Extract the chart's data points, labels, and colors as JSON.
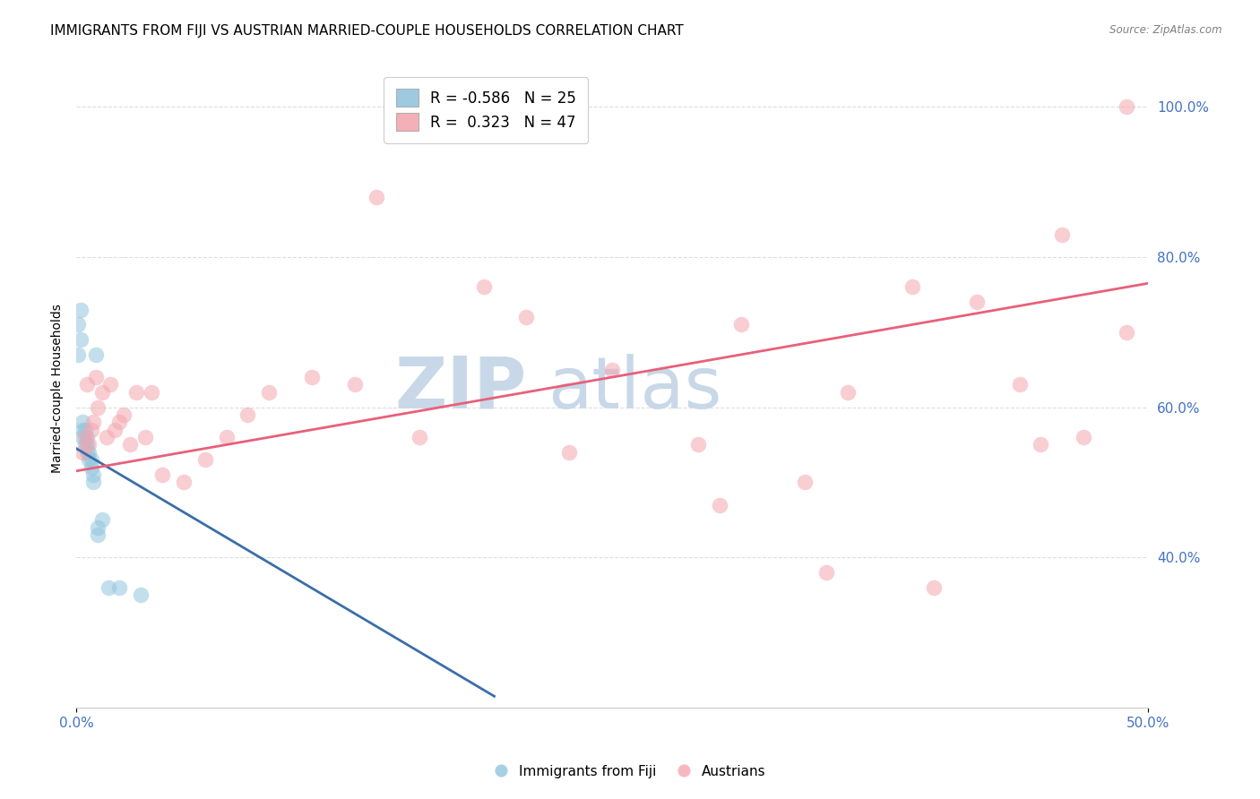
{
  "title": "IMMIGRANTS FROM FIJI VS AUSTRIAN MARRIED-COUPLE HOUSEHOLDS CORRELATION CHART",
  "source": "Source: ZipAtlas.com",
  "ylabel": "Married-couple Households",
  "legend_blue_R": "-0.586",
  "legend_blue_N": "25",
  "legend_pink_R": "0.323",
  "legend_pink_N": "47",
  "legend_label_blue": "Immigrants from Fiji",
  "legend_label_pink": "Austrians",
  "blue_color": "#92C5DE",
  "pink_color": "#F4A6B0",
  "blue_line_color": "#3A6EA8",
  "pink_line_color": "#E8607A",
  "watermark_zip": "ZIP",
  "watermark_atlas": "atlas",
  "watermark_color": "#C8D8E8",
  "xlim": [
    0.0,
    0.5
  ],
  "ylim": [
    0.2,
    1.05
  ],
  "yticks": [
    0.4,
    0.6,
    0.8,
    1.0
  ],
  "xticks_labels": [
    "0.0%",
    "50.0%"
  ],
  "xticks_positions": [
    0.0,
    0.5
  ],
  "blue_x": [
    0.001,
    0.001,
    0.002,
    0.002,
    0.003,
    0.003,
    0.003,
    0.004,
    0.004,
    0.005,
    0.005,
    0.005,
    0.006,
    0.006,
    0.007,
    0.007,
    0.008,
    0.008,
    0.009,
    0.01,
    0.01,
    0.012,
    0.015,
    0.02,
    0.03
  ],
  "blue_y": [
    0.67,
    0.71,
    0.69,
    0.73,
    0.57,
    0.58,
    0.56,
    0.55,
    0.57,
    0.56,
    0.54,
    0.55,
    0.53,
    0.54,
    0.52,
    0.53,
    0.51,
    0.5,
    0.67,
    0.43,
    0.44,
    0.45,
    0.36,
    0.36,
    0.35
  ],
  "pink_x": [
    0.003,
    0.004,
    0.005,
    0.006,
    0.007,
    0.008,
    0.009,
    0.01,
    0.012,
    0.014,
    0.016,
    0.018,
    0.02,
    0.022,
    0.025,
    0.028,
    0.032,
    0.035,
    0.04,
    0.05,
    0.06,
    0.07,
    0.08,
    0.09,
    0.11,
    0.13,
    0.14,
    0.16,
    0.19,
    0.21,
    0.23,
    0.25,
    0.29,
    0.31,
    0.34,
    0.36,
    0.39,
    0.42,
    0.45,
    0.46,
    0.3,
    0.35,
    0.4,
    0.44,
    0.47,
    0.49,
    0.49
  ],
  "pink_y": [
    0.54,
    0.56,
    0.63,
    0.55,
    0.57,
    0.58,
    0.64,
    0.6,
    0.62,
    0.56,
    0.63,
    0.57,
    0.58,
    0.59,
    0.55,
    0.62,
    0.56,
    0.62,
    0.51,
    0.5,
    0.53,
    0.56,
    0.59,
    0.62,
    0.64,
    0.63,
    0.88,
    0.56,
    0.76,
    0.72,
    0.54,
    0.65,
    0.55,
    0.71,
    0.5,
    0.62,
    0.76,
    0.74,
    0.55,
    0.83,
    0.47,
    0.38,
    0.36,
    0.63,
    0.56,
    0.7,
    1.0
  ],
  "blue_trend_x": [
    0.0,
    0.195
  ],
  "blue_trend_y": [
    0.545,
    0.215
  ],
  "pink_trend_x": [
    0.0,
    0.5
  ],
  "pink_trend_y": [
    0.515,
    0.765
  ],
  "marker_size": 160,
  "marker_alpha": 0.55,
  "background_color": "#FFFFFF",
  "grid_color": "#DDDDDD",
  "title_fontsize": 11,
  "axis_label_fontsize": 10,
  "tick_fontsize": 11,
  "right_tick_color": "#4472C4",
  "bottom_tick_color": "#4472C4"
}
